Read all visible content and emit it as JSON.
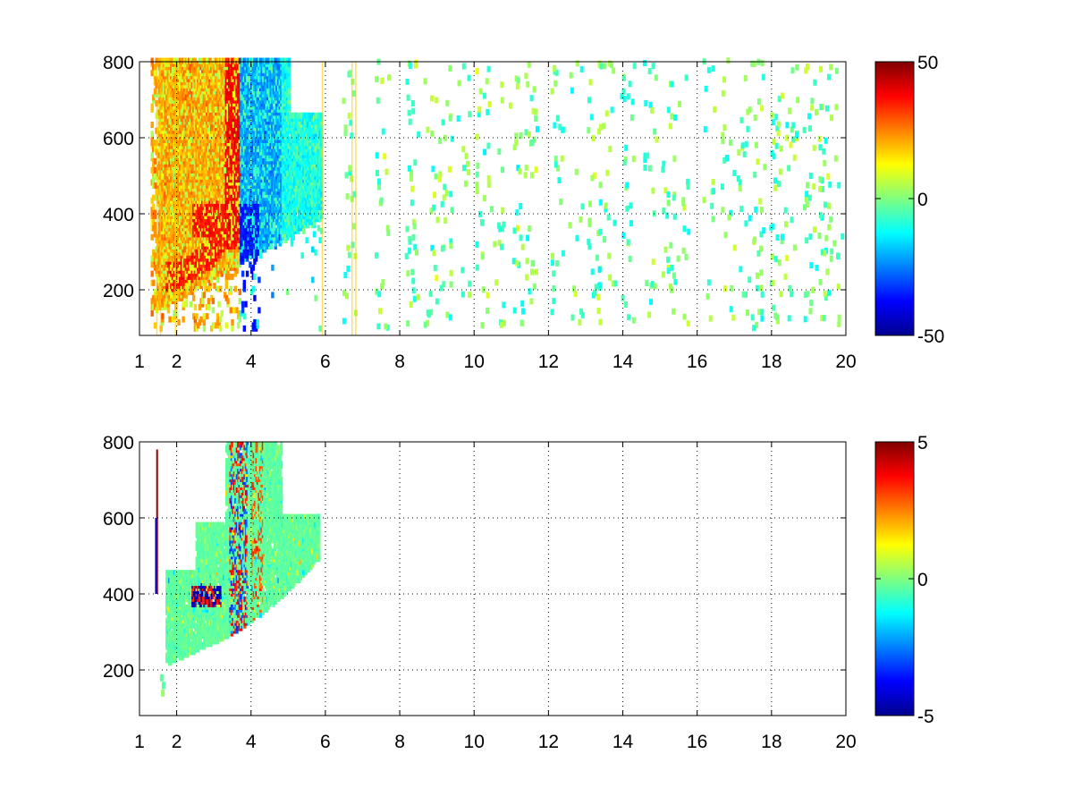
{
  "chart_data": [
    {
      "type": "heatmap",
      "title": "",
      "xlabel": "",
      "ylabel": "",
      "xlim": [
        1,
        20
      ],
      "ylim": [
        80,
        800
      ],
      "x_ticks": [
        1,
        2,
        4,
        6,
        8,
        10,
        12,
        14,
        16,
        18,
        20
      ],
      "y_ticks": [
        200,
        400,
        600,
        800
      ],
      "grid": true,
      "grid_style": "dotted",
      "colormap": "jet",
      "clim": [
        -50,
        50
      ],
      "colorbar_ticks": [
        -50,
        0,
        50
      ],
      "regions": [
        {
          "name": "upper band",
          "x_range": [
            2.3,
            3.9
          ],
          "y_range": [
            300,
            800
          ],
          "mean_value": 32
        },
        {
          "name": "lower arc",
          "x_range": [
            1.5,
            3.0
          ],
          "y_range": [
            220,
            300
          ],
          "mean_value": 35
        },
        {
          "name": "negative band",
          "x_range": [
            3.6,
            5.8
          ],
          "y_range": [
            280,
            780
          ],
          "mean_value": -30
        },
        {
          "name": "sparse streaks",
          "x_range": [
            6,
            19.8
          ],
          "y_range": [
            80,
            800
          ],
          "mean_value": 2
        }
      ]
    },
    {
      "type": "heatmap",
      "title": "",
      "xlabel": "",
      "ylabel": "",
      "xlim": [
        1,
        20
      ],
      "ylim": [
        80,
        800
      ],
      "x_ticks": [
        1,
        2,
        4,
        6,
        8,
        10,
        12,
        14,
        16,
        18,
        20
      ],
      "y_ticks": [
        200,
        400,
        600,
        800
      ],
      "grid": true,
      "grid_style": "dotted",
      "colormap": "jet",
      "clim": [
        -5,
        5
      ],
      "colorbar_ticks": [
        -5,
        0,
        5
      ],
      "regions": [
        {
          "name": "main cluster",
          "x_range": [
            1.7,
            5.8
          ],
          "y_range": [
            200,
            790
          ],
          "mean_value": 0
        },
        {
          "name": "vertical line",
          "x_range": [
            1.45,
            1.5
          ],
          "y_range": [
            400,
            780
          ],
          "mean_value": 4.5
        }
      ]
    }
  ],
  "colors": {
    "jet_stops": [
      "#00008f",
      "#0000ff",
      "#00ffff",
      "#ffff00",
      "#ff0000",
      "#800000"
    ],
    "axis": "#000000",
    "grid": "#000000"
  }
}
